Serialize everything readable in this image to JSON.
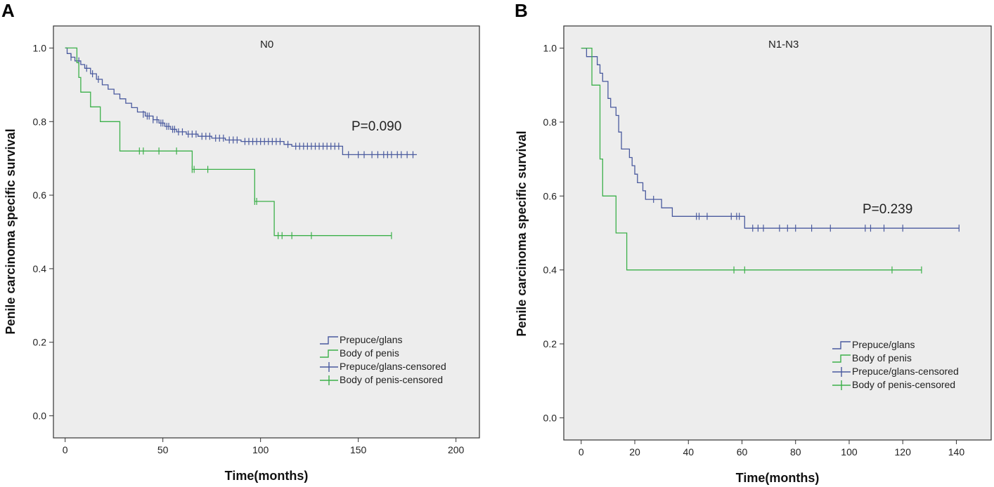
{
  "colors": {
    "plot_bg": "#ededed",
    "series1": "#4a5a9e",
    "series2": "#3cb04a",
    "axis": "#333333"
  },
  "chart_data": [
    {
      "panel": "A",
      "type": "line",
      "title": "N0",
      "xlabel": "Time(months)",
      "ylabel": "Penile carcinoma specific survival",
      "xlim": [
        -6,
        212
      ],
      "ylim": [
        -0.06,
        1.06
      ],
      "xticks": [
        0,
        50,
        100,
        150,
        200
      ],
      "xtick_labels": [
        "0",
        "50",
        "100",
        "150",
        "200"
      ],
      "yticks": [
        0.0,
        0.2,
        0.4,
        0.6,
        0.8,
        1.0
      ],
      "ytick_labels": [
        "0.0",
        "0.2",
        "0.4",
        "0.6",
        "0.8",
        "1.0"
      ],
      "annotation": "P=0.090",
      "legend": [
        "Prepuce/glans",
        "Body of penis",
        "Prepuce/glans-censored",
        "Body of penis-censored"
      ],
      "series": [
        {
          "name": "Prepuce/glans",
          "steps": [
            [
              0,
              1.0
            ],
            [
              1,
              0.985
            ],
            [
              3,
              0.975
            ],
            [
              5,
              0.965
            ],
            [
              8,
              0.955
            ],
            [
              10,
              0.945
            ],
            [
              13,
              0.93
            ],
            [
              16,
              0.915
            ],
            [
              19,
              0.9
            ],
            [
              22,
              0.888
            ],
            [
              25,
              0.875
            ],
            [
              28,
              0.862
            ],
            [
              31,
              0.85
            ],
            [
              34,
              0.838
            ],
            [
              37,
              0.826
            ],
            [
              41,
              0.815
            ],
            [
              45,
              0.805
            ],
            [
              48,
              0.796
            ],
            [
              51,
              0.787
            ],
            [
              54,
              0.779
            ],
            [
              57,
              0.772
            ],
            [
              62,
              0.766
            ],
            [
              68,
              0.76
            ],
            [
              75,
              0.755
            ],
            [
              82,
              0.75
            ],
            [
              90,
              0.746
            ],
            [
              112,
              0.738
            ],
            [
              116,
              0.733
            ],
            [
              142,
              0.71
            ],
            [
              180,
              0.71
            ]
          ],
          "censored": [
            [
              3,
              0.975
            ],
            [
              7,
              0.965
            ],
            [
              11,
              0.945
            ],
            [
              14,
              0.93
            ],
            [
              17,
              0.915
            ],
            [
              40,
              0.82
            ],
            [
              42,
              0.815
            ],
            [
              43,
              0.815
            ],
            [
              45,
              0.805
            ],
            [
              47,
              0.805
            ],
            [
              49,
              0.796
            ],
            [
              50,
              0.796
            ],
            [
              52,
              0.787
            ],
            [
              53,
              0.787
            ],
            [
              55,
              0.779
            ],
            [
              56,
              0.779
            ],
            [
              58,
              0.772
            ],
            [
              60,
              0.772
            ],
            [
              63,
              0.766
            ],
            [
              65,
              0.766
            ],
            [
              67,
              0.766
            ],
            [
              70,
              0.76
            ],
            [
              72,
              0.76
            ],
            [
              74,
              0.76
            ],
            [
              77,
              0.755
            ],
            [
              79,
              0.755
            ],
            [
              81,
              0.755
            ],
            [
              84,
              0.75
            ],
            [
              86,
              0.75
            ],
            [
              88,
              0.75
            ],
            [
              92,
              0.746
            ],
            [
              94,
              0.746
            ],
            [
              96,
              0.746
            ],
            [
              98,
              0.746
            ],
            [
              100,
              0.746
            ],
            [
              102,
              0.746
            ],
            [
              104,
              0.746
            ],
            [
              106,
              0.746
            ],
            [
              108,
              0.746
            ],
            [
              110,
              0.746
            ],
            [
              114,
              0.738
            ],
            [
              118,
              0.733
            ],
            [
              120,
              0.733
            ],
            [
              122,
              0.733
            ],
            [
              124,
              0.733
            ],
            [
              126,
              0.733
            ],
            [
              128,
              0.733
            ],
            [
              130,
              0.733
            ],
            [
              132,
              0.733
            ],
            [
              134,
              0.733
            ],
            [
              136,
              0.733
            ],
            [
              138,
              0.733
            ],
            [
              140,
              0.733
            ],
            [
              145,
              0.71
            ],
            [
              150,
              0.71
            ],
            [
              153,
              0.71
            ],
            [
              157,
              0.71
            ],
            [
              160,
              0.71
            ],
            [
              163,
              0.71
            ],
            [
              165,
              0.71
            ],
            [
              167,
              0.71
            ],
            [
              170,
              0.71
            ],
            [
              172,
              0.71
            ],
            [
              175,
              0.71
            ],
            [
              178,
              0.71
            ]
          ]
        },
        {
          "name": "Body of penis",
          "steps": [
            [
              0,
              1.0
            ],
            [
              6,
              0.96
            ],
            [
              7,
              0.92
            ],
            [
              8,
              0.88
            ],
            [
              13,
              0.84
            ],
            [
              18,
              0.8
            ],
            [
              28,
              0.72
            ],
            [
              65,
              0.67
            ],
            [
              97,
              0.583
            ],
            [
              107,
              0.49
            ],
            [
              167,
              0.49
            ]
          ],
          "censored": [
            [
              38,
              0.72
            ],
            [
              40,
              0.72
            ],
            [
              48,
              0.72
            ],
            [
              57,
              0.72
            ],
            [
              65,
              0.67
            ],
            [
              66,
              0.67
            ],
            [
              73,
              0.67
            ],
            [
              97,
              0.583
            ],
            [
              98,
              0.583
            ],
            [
              109,
              0.49
            ],
            [
              111,
              0.49
            ],
            [
              116,
              0.49
            ],
            [
              126,
              0.49
            ],
            [
              167,
              0.49
            ]
          ]
        }
      ]
    },
    {
      "panel": "B",
      "type": "line",
      "title": "N1-N3",
      "xlabel": "Time(months)",
      "ylabel": "Penile carcinoma specific survival",
      "xlim": [
        -6.5,
        153
      ],
      "ylim": [
        -0.06,
        1.06
      ],
      "xticks": [
        0,
        20,
        40,
        60,
        80,
        100,
        120,
        140
      ],
      "xtick_labels": [
        "0",
        "20",
        "40",
        "60",
        "80",
        "100",
        "120",
        "140"
      ],
      "yticks": [
        0.0,
        0.2,
        0.4,
        0.6,
        0.8,
        1.0
      ],
      "ytick_labels": [
        "0.0",
        "0.2",
        "0.4",
        "0.6",
        "0.8",
        "1.0"
      ],
      "annotation": "P=0.239",
      "legend": [
        "Prepuce/glans",
        "Body of penis",
        "Prepuce/glans-censored",
        "Body of penis-censored"
      ],
      "series": [
        {
          "name": "Prepuce/glans",
          "steps": [
            [
              0,
              1.0
            ],
            [
              2,
              0.977
            ],
            [
              6,
              0.955
            ],
            [
              7,
              0.932
            ],
            [
              8,
              0.91
            ],
            [
              10,
              0.864
            ],
            [
              11,
              0.84
            ],
            [
              13,
              0.818
            ],
            [
              14,
              0.773
            ],
            [
              15,
              0.727
            ],
            [
              18,
              0.704
            ],
            [
              19,
              0.682
            ],
            [
              20,
              0.659
            ],
            [
              21,
              0.636
            ],
            [
              23,
              0.614
            ],
            [
              24,
              0.591
            ],
            [
              30,
              0.568
            ],
            [
              34,
              0.545
            ],
            [
              61,
              0.513
            ],
            [
              141,
              0.513
            ]
          ],
          "censored": [
            [
              27,
              0.591
            ],
            [
              43,
              0.545
            ],
            [
              44,
              0.545
            ],
            [
              47,
              0.545
            ],
            [
              56,
              0.545
            ],
            [
              58,
              0.545
            ],
            [
              59,
              0.545
            ],
            [
              64,
              0.513
            ],
            [
              66,
              0.513
            ],
            [
              68,
              0.513
            ],
            [
              74,
              0.513
            ],
            [
              77,
              0.513
            ],
            [
              80,
              0.513
            ],
            [
              86,
              0.513
            ],
            [
              93,
              0.513
            ],
            [
              106,
              0.513
            ],
            [
              108,
              0.513
            ],
            [
              113,
              0.513
            ],
            [
              120,
              0.513
            ],
            [
              141,
              0.513
            ]
          ]
        },
        {
          "name": "Body of penis",
          "steps": [
            [
              0,
              1.0
            ],
            [
              4,
              0.9
            ],
            [
              7,
              0.7
            ],
            [
              8,
              0.6
            ],
            [
              13,
              0.5
            ],
            [
              17,
              0.4
            ],
            [
              127,
              0.4
            ]
          ],
          "censored": [
            [
              57,
              0.4
            ],
            [
              61,
              0.4
            ],
            [
              116,
              0.4
            ],
            [
              127,
              0.4
            ]
          ]
        }
      ]
    }
  ]
}
